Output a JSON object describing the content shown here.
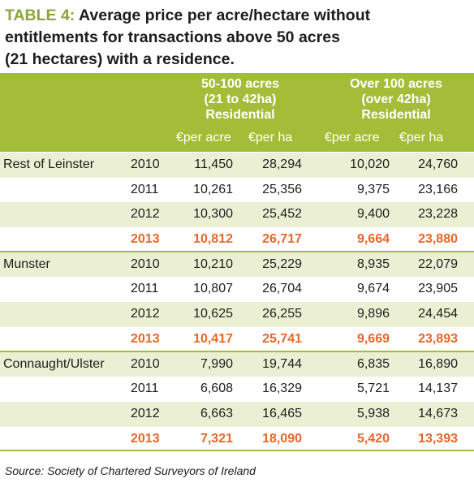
{
  "title": {
    "label": "TABLE 4:",
    "line1": "Average price per acre/hectare without",
    "line2": "entitlements for transactions above 50 acres",
    "line3": "(21 hectares) with a residence."
  },
  "header": {
    "group1": {
      "line1": "50-100 acres",
      "line2": "(21 to 42ha)",
      "line3": "Residential"
    },
    "group2": {
      "line1": "Over 100 acres",
      "line2": "(over 42ha)",
      "line3": "Residential"
    },
    "columns": [
      "€per acre",
      "€per ha",
      "€per acre",
      "€per ha"
    ]
  },
  "rows": [
    {
      "region": "Rest of Leinster",
      "year": "2010",
      "v": [
        "11,450",
        "28,294",
        "10,020",
        "24,760"
      ]
    },
    {
      "region": "",
      "year": "2011",
      "v": [
        "10,261",
        "25,356",
        "9,375",
        "23,166"
      ]
    },
    {
      "region": "",
      "year": "2012",
      "v": [
        "10,300",
        "25,452",
        "9,400",
        "23,228"
      ]
    },
    {
      "region": "",
      "year": "2013",
      "v": [
        "10,812",
        "26,717",
        "9,664",
        "23,880"
      ]
    },
    {
      "region": "Munster",
      "year": "2010",
      "v": [
        "10,210",
        "25,229",
        "8,935",
        "22,079"
      ]
    },
    {
      "region": "",
      "year": "2011",
      "v": [
        "10,807",
        "26,704",
        "9,674",
        "23,905"
      ]
    },
    {
      "region": "",
      "year": "2012",
      "v": [
        "10,625",
        "26,255",
        "9,896",
        "24,454"
      ]
    },
    {
      "region": "",
      "year": "2013",
      "v": [
        "10,417",
        "25,741",
        "9,669",
        "23,893"
      ]
    },
    {
      "region": "Connaught/Ulster",
      "year": "2010",
      "v": [
        "7,990",
        "19,744",
        "6,835",
        "16,890"
      ]
    },
    {
      "region": "",
      "year": "2011",
      "v": [
        "6,608",
        "16,329",
        "5,721",
        "14,137"
      ]
    },
    {
      "region": "",
      "year": "2012",
      "v": [
        "6,663",
        "16,465",
        "5,938",
        "14,673"
      ]
    },
    {
      "region": "",
      "year": "2013",
      "v": [
        "7,321",
        "18,090",
        "5,420",
        "13,393"
      ]
    }
  ],
  "source": "Source: Society of Chartered Surveyors of Ireland",
  "colors": {
    "header_green": "#a4bd39",
    "label_green": "#8aa53a",
    "row_shade": "#ebf0d4",
    "highlight_orange": "#e8662a"
  }
}
